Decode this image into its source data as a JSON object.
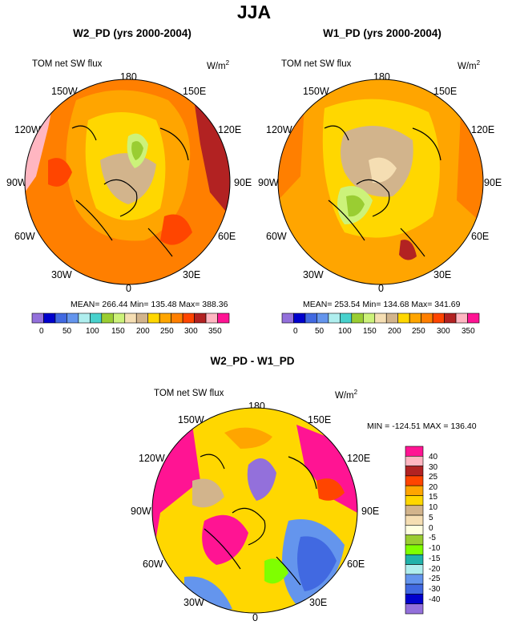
{
  "title": "JJA",
  "palette": {
    "abs": [
      "#9370db",
      "#0000cd",
      "#4169e1",
      "#6495ed",
      "#afeeee",
      "#48d1cc",
      "#9acd32",
      "#ccf27a",
      "#f5deb3",
      "#d2b48c",
      "#ffd700",
      "#ffa500",
      "#ff7f00",
      "#ff4500",
      "#b22222",
      "#ffb6c1",
      "#ff1493"
    ],
    "diff": [
      "#9370db",
      "#0000cd",
      "#4169e1",
      "#6495ed",
      "#afeeee",
      "#20b2aa",
      "#7fff00",
      "#9acd32",
      "#ffffe0",
      "#f5deb3",
      "#d2b48c",
      "#ffd700",
      "#ffa500",
      "#ff4500",
      "#b22222",
      "#ffb6c1",
      "#ff1493"
    ]
  },
  "panels": {
    "w2": {
      "title": "W2_PD (yrs 2000-2004)",
      "field": "TOM net SW flux",
      "units": "W/m",
      "units_sup": "2",
      "stats": "MEAN= 266.44  Min= 135.48  Max= 388.36",
      "colorbar_ticks": [
        "0",
        "50",
        "100",
        "150",
        "200",
        "250",
        "300",
        "350"
      ]
    },
    "w1": {
      "title": "W1_PD (yrs 2000-2004)",
      "field": "TOM net SW flux",
      "units": "W/m",
      "units_sup": "2",
      "stats": "MEAN= 253.54  Min= 134.68  Max= 341.69",
      "colorbar_ticks": [
        "0",
        "50",
        "100",
        "150",
        "200",
        "250",
        "300",
        "350"
      ]
    },
    "diff": {
      "title": "W2_PD - W1_PD",
      "field": "TOM net SW flux",
      "units": "W/m",
      "units_sup": "2",
      "stats": "MIN = -124.51 MAX = 136.40",
      "colorbar_ticks": [
        "40",
        "30",
        "25",
        "20",
        "15",
        "10",
        "5",
        "0",
        "-5",
        "-10",
        "-15",
        "-20",
        "-25",
        "-30",
        "-40"
      ]
    }
  },
  "lon_labels": {
    "top": "180",
    "bottom": "0",
    "left": "90W",
    "right": "90E",
    "upper_left": "150W",
    "upper_right": "150E",
    "mid_left_upper": "120W",
    "mid_right_upper": "120E",
    "mid_left_lower": "60W",
    "mid_right_lower": "60E",
    "lower_left": "30W",
    "lower_right": "30E"
  },
  "chart_data": [
    {
      "type": "heatmap",
      "title": "W2_PD (yrs 2000-2004)",
      "variable": "TOM net SW flux",
      "units": "W/m2",
      "projection": "north polar stereographic",
      "levels": [
        0,
        25,
        50,
        75,
        100,
        125,
        150,
        175,
        200,
        225,
        250,
        275,
        300,
        325,
        350,
        375
      ],
      "mean": 266.44,
      "min": 135.48,
      "max": 388.36
    },
    {
      "type": "heatmap",
      "title": "W1_PD (yrs 2000-2004)",
      "variable": "TOM net SW flux",
      "units": "W/m2",
      "projection": "north polar stereographic",
      "levels": [
        0,
        25,
        50,
        75,
        100,
        125,
        150,
        175,
        200,
        225,
        250,
        275,
        300,
        325,
        350,
        375
      ],
      "mean": 253.54,
      "min": 134.68,
      "max": 341.69
    },
    {
      "type": "heatmap",
      "title": "W2_PD - W1_PD",
      "variable": "TOM net SW flux",
      "units": "W/m2",
      "projection": "north polar stereographic",
      "levels": [
        -40,
        -30,
        -25,
        -20,
        -15,
        -10,
        -5,
        0,
        5,
        10,
        15,
        20,
        25,
        30,
        40
      ],
      "min": -124.51,
      "max": 136.4
    }
  ]
}
